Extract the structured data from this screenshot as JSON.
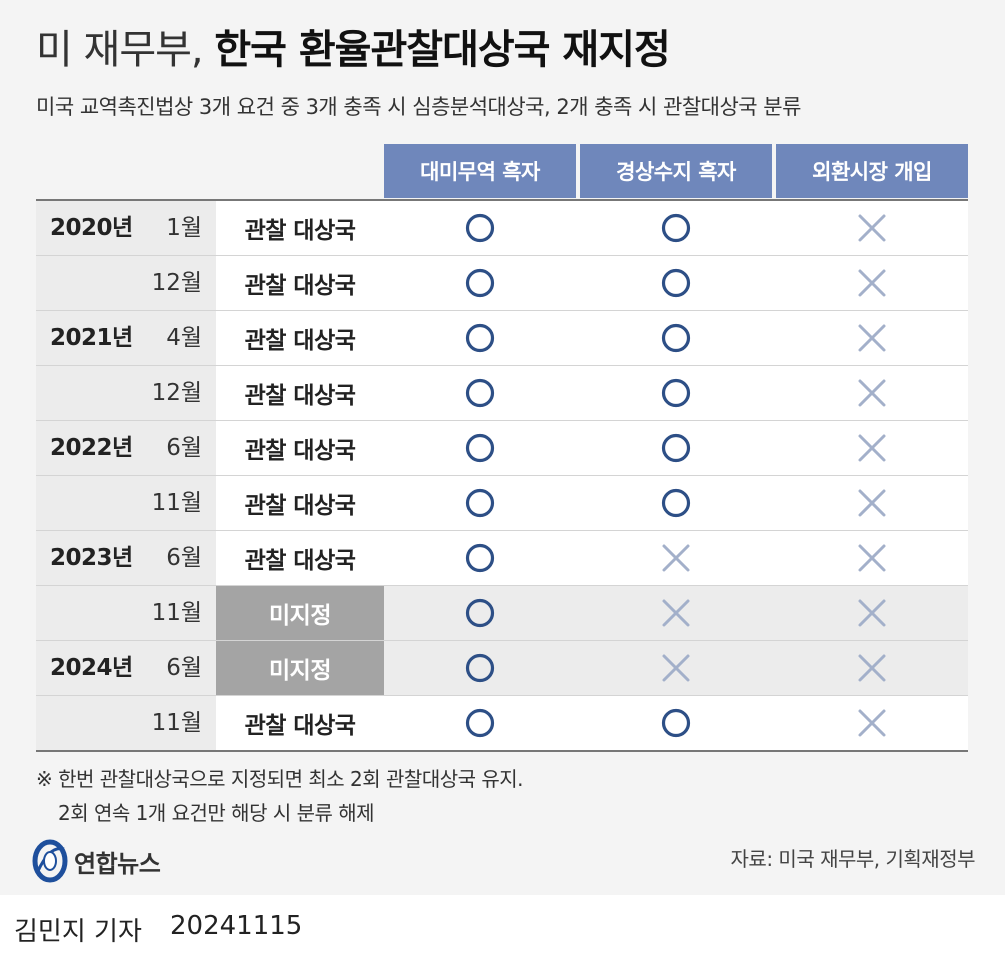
{
  "title": {
    "light": "미 재무부, ",
    "bold": "한국 환율관찰대상국 재지정"
  },
  "subtitle": "미국 교역촉진법상 3개 요건 중 3개 충족 시 심층분석대상국, 2개 충족 시 관찰대상국 분류",
  "columns": [
    "대미무역 흑자",
    "경상수지 흑자",
    "외환시장 개입"
  ],
  "rows": [
    {
      "year": "2020년",
      "month": "1월",
      "status": "관찰 대상국",
      "designated": true,
      "marks": [
        "O",
        "O",
        "X"
      ]
    },
    {
      "year": "",
      "month": "12월",
      "status": "관찰 대상국",
      "designated": true,
      "marks": [
        "O",
        "O",
        "X"
      ]
    },
    {
      "year": "2021년",
      "month": "4월",
      "status": "관찰 대상국",
      "designated": true,
      "marks": [
        "O",
        "O",
        "X"
      ]
    },
    {
      "year": "",
      "month": "12월",
      "status": "관찰 대상국",
      "designated": true,
      "marks": [
        "O",
        "O",
        "X"
      ]
    },
    {
      "year": "2022년",
      "month": "6월",
      "status": "관찰 대상국",
      "designated": true,
      "marks": [
        "O",
        "O",
        "X"
      ]
    },
    {
      "year": "",
      "month": "11월",
      "status": "관찰 대상국",
      "designated": true,
      "marks": [
        "O",
        "O",
        "X"
      ]
    },
    {
      "year": "2023년",
      "month": "6월",
      "status": "관찰 대상국",
      "designated": true,
      "marks": [
        "O",
        "X",
        "X"
      ]
    },
    {
      "year": "",
      "month": "11월",
      "status": "미지정",
      "designated": false,
      "marks": [
        "O",
        "X",
        "X"
      ]
    },
    {
      "year": "2024년",
      "month": "6월",
      "status": "미지정",
      "designated": false,
      "marks": [
        "O",
        "X",
        "X"
      ]
    },
    {
      "year": "",
      "month": "11월",
      "status": "관찰 대상국",
      "designated": true,
      "marks": [
        "O",
        "O",
        "X"
      ]
    }
  ],
  "note": {
    "line1": "※ 한번 관찰대상국으로 지정되면 최소 2회 관찰대상국 유지.",
    "line2": "2회 연속 1개 요건만 해당 시 분류 해제"
  },
  "source": "자료: 미국 재무부, 기획재정부",
  "logo": {
    "text": "연합뉴스",
    "icon": "yonhap-globe-icon"
  },
  "credit": {
    "name": "김민지 기자",
    "date": "20241115"
  },
  "colors": {
    "header": "#6f87bb",
    "circle": "#2d4f86",
    "cross": "#a3b0ca",
    "undesignated": "#a4a4a4"
  }
}
